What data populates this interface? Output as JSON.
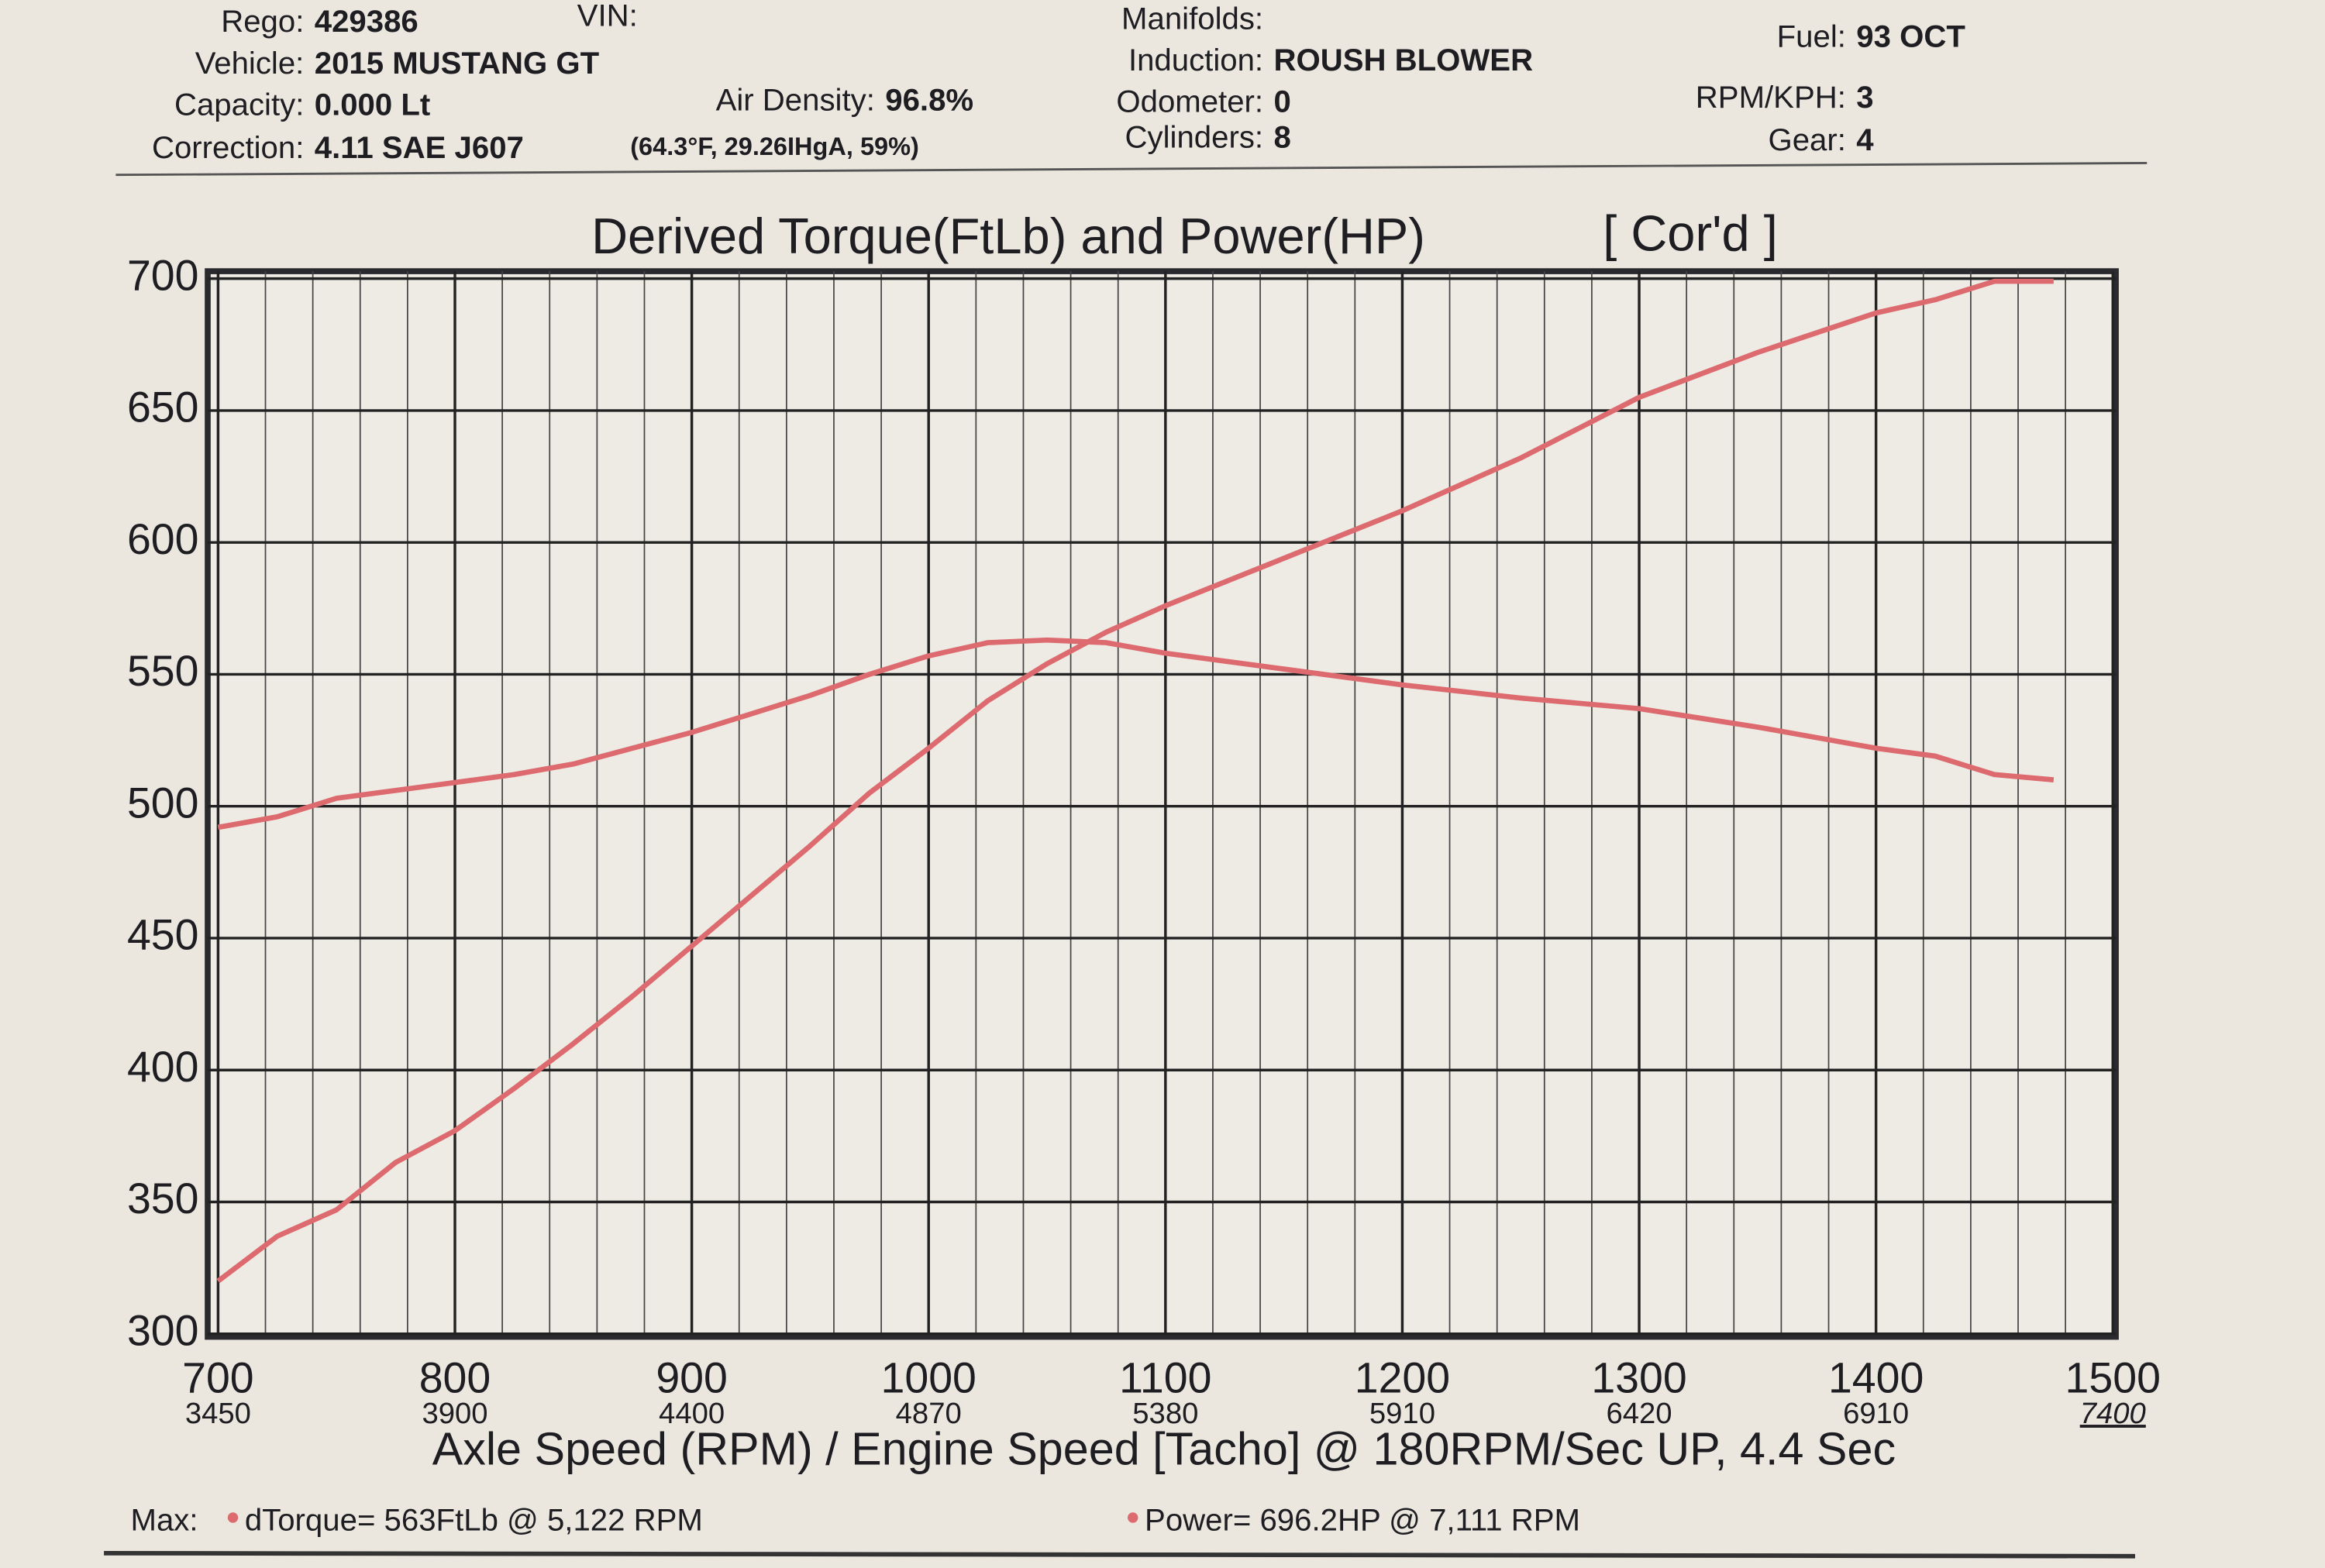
{
  "header": {
    "fields": [
      {
        "label": "Rego:",
        "value": "429386"
      },
      {
        "label": "VIN:"
      },
      {
        "label": "Vehicle:",
        "value": "2015 MUSTANG GT"
      },
      {
        "label": "Capacity:",
        "value": "0.000 Lt"
      },
      {
        "label": "Correction:",
        "value": "4.11 SAE J607"
      },
      {
        "label": "Air Density:",
        "value": "96.8%"
      },
      {
        "label": "Manifolds:"
      },
      {
        "label": "Induction:",
        "value": "ROUSH BLOWER"
      },
      {
        "label": "Odometer:",
        "value": "0"
      },
      {
        "label": "Cylinders:",
        "value": "8"
      },
      {
        "label": "Fuel:",
        "value": "93 OCT"
      },
      {
        "label": "RPM/KPH:",
        "value": "3"
      },
      {
        "label": "Gear:",
        "value": "4"
      }
    ],
    "conditions": "(64.3°F, 29.26IHgA, 59%)"
  },
  "chart_data": {
    "type": "line",
    "title": "Derived Torque(FtLb) and Power(HP)",
    "subtitle": "[ Cor'd ]",
    "x_label": "Axle Speed (RPM) / Engine Speed [Tacho] @ 180RPM/Sec UP, 4.4 Sec",
    "xlim": [
      700,
      1500
    ],
    "xticks": [
      700,
      800,
      900,
      1000,
      1100,
      1200,
      1300,
      1400,
      1500
    ],
    "xticks2": [
      3450,
      3900,
      4400,
      4870,
      5380,
      5910,
      6420,
      6910,
      7400
    ],
    "minor_grid_step": 20,
    "ylim": [
      300,
      700
    ],
    "yticks": [
      300,
      350,
      400,
      450,
      500,
      550,
      600,
      650,
      700
    ],
    "grid": true,
    "legend_label": "Max:",
    "x": [
      700,
      725,
      750,
      775,
      800,
      825,
      850,
      875,
      900,
      925,
      950,
      975,
      1000,
      1025,
      1050,
      1075,
      1100,
      1150,
      1200,
      1250,
      1300,
      1350,
      1400,
      1425,
      1450,
      1475
    ],
    "series": [
      {
        "name": "dTorque",
        "max_label": "= 563FtLb @ 5,122 RPM",
        "color": "#dc6a6e",
        "values": [
          492,
          496,
          503,
          506,
          509,
          512,
          516,
          522,
          528,
          535,
          542,
          550,
          557,
          562,
          563,
          562,
          558,
          552,
          546,
          541,
          537,
          530,
          522,
          519,
          512,
          510
        ]
      },
      {
        "name": "Power",
        "max_label": "= 696.2HP @ 7,111 RPM",
        "color": "#dc6a6e",
        "values": [
          320,
          337,
          347,
          365,
          377,
          393,
          410,
          428,
          447,
          466,
          485,
          505,
          522,
          540,
          554,
          566,
          576,
          594,
          612,
          632,
          655,
          672,
          687,
          692,
          699,
          699
        ]
      }
    ]
  }
}
